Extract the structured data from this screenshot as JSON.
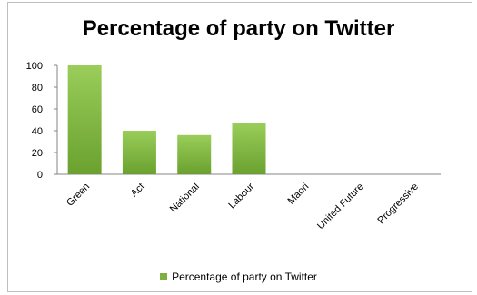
{
  "chart_data": {
    "type": "bar",
    "title": "Percentage of party on Twitter",
    "categories": [
      "Green",
      "Act",
      "National",
      "Labour",
      "Maori",
      "United Future",
      "Progressive"
    ],
    "series": [
      {
        "name": "Percentage of party on Twitter",
        "values": [
          100,
          40,
          36,
          47,
          0,
          0,
          0
        ],
        "color": "#7fb03f"
      }
    ],
    "yticks": [
      "100",
      "80",
      "60",
      "40",
      "20",
      "0"
    ],
    "ylim": [
      0,
      100
    ],
    "xlabel": "",
    "ylabel": "",
    "grid": false,
    "legend": "bottom"
  }
}
